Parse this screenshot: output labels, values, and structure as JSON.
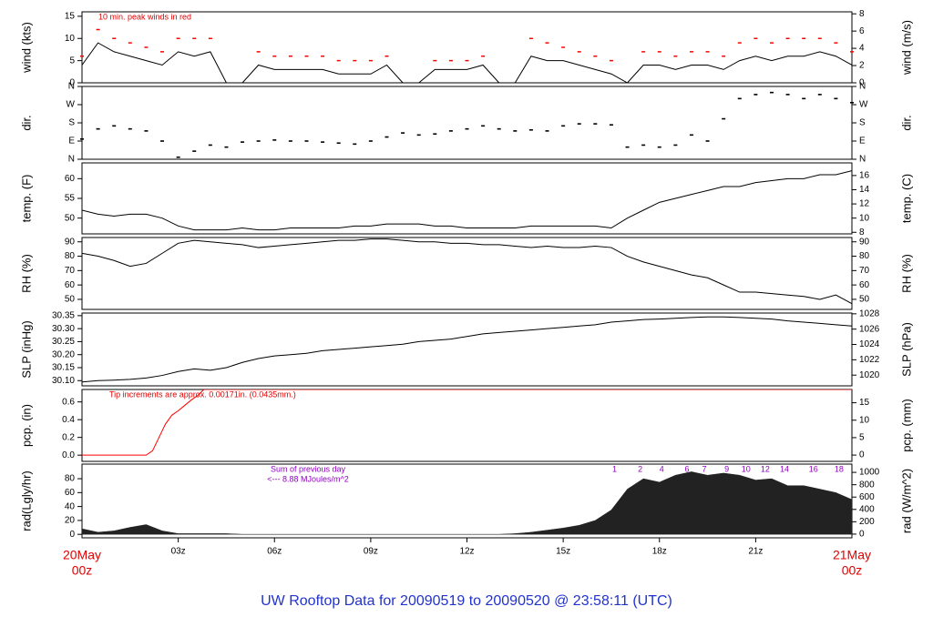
{
  "title": "UW Rooftop Data for 20090519  to  20090520 @ 23:58:11  (UTC)",
  "xlim": [
    0,
    24
  ],
  "xticks": [
    {
      "value": 3,
      "label": "03z"
    },
    {
      "value": 6,
      "label": "06z"
    },
    {
      "value": 9,
      "label": "09z"
    },
    {
      "value": 12,
      "label": "12z"
    },
    {
      "value": 15,
      "label": "15z"
    },
    {
      "value": 18,
      "label": "18z"
    },
    {
      "value": 21,
      "label": "21z"
    }
  ],
  "x_start_label": [
    "20May",
    "00z"
  ],
  "x_end_label": [
    "21May",
    "00z"
  ],
  "chart_data": [
    {
      "type": "line",
      "ylabel": "wind (kts)",
      "y2label": "wind (m/s)",
      "ylim": [
        0,
        16
      ],
      "yticks": [
        0,
        5,
        10,
        15
      ],
      "y2lim": [
        0,
        8.23
      ],
      "y2ticks": [
        0,
        2,
        4,
        6,
        8
      ],
      "annotation": "10 min. peak winds in red",
      "x": [
        0,
        0.5,
        1,
        1.5,
        2,
        2.5,
        3,
        3.5,
        4,
        4.5,
        5,
        5.5,
        6,
        6.5,
        7,
        7.5,
        8,
        8.5,
        9,
        9.5,
        10,
        10.5,
        11,
        11.5,
        12,
        12.5,
        13,
        13.5,
        14,
        14.5,
        15,
        15.5,
        16,
        16.5,
        17,
        17.5,
        18,
        18.5,
        19,
        19.5,
        20,
        20.5,
        21,
        21.5,
        22,
        22.5,
        23,
        23.5,
        24
      ],
      "series": [
        {
          "color": "#000000",
          "values": [
            4,
            9,
            7,
            6,
            5,
            4,
            7,
            6,
            7,
            0,
            0,
            4,
            3,
            3,
            3,
            3,
            2,
            2,
            2,
            4,
            0,
            0,
            3,
            3,
            3,
            4,
            0,
            0,
            6,
            5,
            5,
            4,
            3,
            2,
            0,
            4,
            4,
            3,
            4,
            4,
            3,
            5,
            6,
            5,
            6,
            6,
            7,
            6,
            4
          ]
        },
        {
          "color": "#ff0000",
          "marker": "dash",
          "values": [
            6,
            12,
            10,
            9,
            8,
            7,
            10,
            10,
            10,
            0,
            0,
            7,
            6,
            6,
            6,
            6,
            5,
            5,
            5,
            6,
            0,
            0,
            5,
            5,
            5,
            6,
            0,
            0,
            10,
            9,
            8,
            7,
            6,
            5,
            0,
            7,
            7,
            6,
            7,
            7,
            6,
            9,
            10,
            9,
            10,
            10,
            10,
            9,
            7
          ]
        }
      ]
    },
    {
      "type": "scatter",
      "ylabel": "dir.",
      "y2label": "dir.",
      "ylim": [
        0,
        360
      ],
      "yticks": [
        {
          "value": 0,
          "label": "N"
        },
        {
          "value": 90,
          "label": "E"
        },
        {
          "value": 180,
          "label": "S"
        },
        {
          "value": 270,
          "label": "W"
        },
        {
          "value": 360,
          "label": "N"
        }
      ],
      "y2lim": [
        0,
        360
      ],
      "y2ticks": [
        {
          "value": 0,
          "label": "N"
        },
        {
          "value": 90,
          "label": "E"
        },
        {
          "value": 180,
          "label": "S"
        },
        {
          "value": 270,
          "label": "W"
        },
        {
          "value": 360,
          "label": "N"
        }
      ],
      "x": [
        0,
        0.5,
        1,
        1.5,
        2,
        2.5,
        3,
        3.5,
        4,
        4.5,
        5,
        5.5,
        6,
        6.5,
        7,
        7.5,
        8,
        8.5,
        9,
        9.5,
        10,
        10.5,
        11,
        11.5,
        12,
        12.5,
        13,
        13.5,
        14,
        14.5,
        15,
        15.5,
        16,
        16.5,
        17,
        17.5,
        18,
        18.5,
        19,
        19.5,
        20,
        20.5,
        21,
        21.5,
        22,
        22.5,
        23,
        23.5,
        24
      ],
      "series": [
        {
          "color": "#000000",
          "values": [
            100,
            150,
            165,
            150,
            140,
            90,
            10,
            40,
            70,
            60,
            85,
            90,
            95,
            90,
            90,
            85,
            80,
            75,
            90,
            110,
            130,
            120,
            125,
            140,
            150,
            165,
            150,
            140,
            145,
            140,
            165,
            175,
            175,
            170,
            60,
            70,
            60,
            70,
            120,
            90,
            200,
            300,
            320,
            330,
            320,
            300,
            320,
            300,
            280
          ]
        }
      ]
    },
    {
      "type": "line",
      "ylabel": "temp. (F)",
      "y2label": "temp. (C)",
      "ylim": [
        46,
        64
      ],
      "yticks": [
        50,
        55,
        60
      ],
      "y2lim": [
        7.78,
        17.78
      ],
      "y2ticks": [
        8,
        10,
        12,
        14,
        16
      ],
      "x": [
        0,
        0.5,
        1,
        1.5,
        2,
        2.5,
        3,
        3.5,
        4,
        4.5,
        5,
        5.5,
        6,
        6.5,
        7,
        7.5,
        8,
        8.5,
        9,
        9.5,
        10,
        10.5,
        11,
        11.5,
        12,
        12.5,
        13,
        13.5,
        14,
        14.5,
        15,
        15.5,
        16,
        16.5,
        17,
        17.5,
        18,
        18.5,
        19,
        19.5,
        20,
        20.5,
        21,
        21.5,
        22,
        22.5,
        23,
        23.5,
        24
      ],
      "series": [
        {
          "color": "#000000",
          "values": [
            52,
            51,
            50.5,
            51,
            51,
            50,
            48,
            47,
            47,
            47,
            47.5,
            47,
            47,
            47.5,
            47.5,
            47.5,
            47.5,
            48,
            48,
            48.5,
            48.5,
            48.5,
            48,
            48,
            47.5,
            47.5,
            47.5,
            47.5,
            48,
            48,
            48,
            48,
            48,
            47.5,
            50,
            52,
            54,
            55,
            56,
            57,
            58,
            58,
            59,
            59.5,
            60,
            60,
            61,
            61,
            62
          ]
        }
      ]
    },
    {
      "type": "line",
      "ylabel": "RH (%)",
      "y2label": "RH (%)",
      "ylim": [
        43,
        93
      ],
      "yticks": [
        50,
        60,
        70,
        80,
        90
      ],
      "y2lim": [
        43,
        93
      ],
      "y2ticks": [
        50,
        60,
        70,
        80,
        90
      ],
      "x": [
        0,
        0.5,
        1,
        1.5,
        2,
        2.5,
        3,
        3.5,
        4,
        4.5,
        5,
        5.5,
        6,
        6.5,
        7,
        7.5,
        8,
        8.5,
        9,
        9.5,
        10,
        10.5,
        11,
        11.5,
        12,
        12.5,
        13,
        13.5,
        14,
        14.5,
        15,
        15.5,
        16,
        16.5,
        17,
        17.5,
        18,
        18.5,
        19,
        19.5,
        20,
        20.5,
        21,
        21.5,
        22,
        22.5,
        23,
        23.5,
        24
      ],
      "series": [
        {
          "color": "#000000",
          "values": [
            82,
            80,
            77,
            73,
            75,
            82,
            89,
            91,
            90,
            89,
            88,
            86,
            87,
            88,
            89,
            90,
            91,
            91,
            92,
            92,
            91,
            90,
            90,
            89,
            89,
            88,
            88,
            87,
            86,
            87,
            86,
            86,
            87,
            86,
            80,
            76,
            73,
            70,
            67,
            65,
            60,
            55,
            55,
            54,
            53,
            52,
            50,
            53,
            47
          ]
        }
      ]
    },
    {
      "type": "line",
      "ylabel": "SLP (inHg)",
      "y2label": "SLP (hPa)",
      "ylim": [
        30.08,
        30.36
      ],
      "yticks": [
        {
          "value": 30.1,
          "label": "30.10"
        },
        30.15,
        {
          "value": 30.2,
          "label": "30.20"
        },
        30.25,
        {
          "value": 30.3,
          "label": "30.30"
        },
        30.35
      ],
      "y2lim": [
        1018.6,
        1028.1
      ],
      "y2ticks": [
        1020,
        1022,
        1024,
        1026,
        1028
      ],
      "x": [
        0,
        0.5,
        1,
        1.5,
        2,
        2.5,
        3,
        3.5,
        4,
        4.5,
        5,
        5.5,
        6,
        6.5,
        7,
        7.5,
        8,
        8.5,
        9,
        9.5,
        10,
        10.5,
        11,
        11.5,
        12,
        12.5,
        13,
        13.5,
        14,
        14.5,
        15,
        15.5,
        16,
        16.5,
        17,
        17.5,
        18,
        18.5,
        19,
        19.5,
        20,
        20.5,
        21,
        21.5,
        22,
        22.5,
        23,
        23.5,
        24
      ],
      "series": [
        {
          "color": "#000000",
          "values": [
            30.095,
            30.1,
            30.102,
            30.105,
            30.11,
            30.12,
            30.135,
            30.145,
            30.14,
            30.15,
            30.17,
            30.185,
            30.195,
            30.2,
            30.205,
            30.215,
            30.22,
            30.225,
            30.23,
            30.235,
            30.24,
            30.25,
            30.255,
            30.26,
            30.27,
            30.28,
            30.285,
            30.29,
            30.295,
            30.3,
            30.305,
            30.31,
            30.315,
            30.325,
            30.33,
            30.335,
            30.337,
            30.34,
            30.343,
            30.345,
            30.345,
            30.343,
            30.34,
            30.337,
            30.33,
            30.325,
            30.32,
            30.315,
            30.31
          ]
        }
      ]
    },
    {
      "type": "line",
      "ylabel": "pcp. (in)",
      "y2label": "pcp. (mm)",
      "ylim": [
        -0.07,
        0.74
      ],
      "yticks": [
        {
          "value": 0,
          "label": "0.0"
        },
        0.2,
        0.4,
        0.6
      ],
      "y2lim": [
        -1.8,
        18.8
      ],
      "y2ticks": [
        0,
        5,
        10,
        15
      ],
      "annotation": "Tip increments are approx. 0.00171in. (0.0435mm.)",
      "x": [
        0,
        2,
        2.2,
        2.4,
        2.6,
        2.8,
        3,
        3.2,
        3.4,
        3.6,
        3.8,
        24
      ],
      "series": [
        {
          "color": "#ff0000",
          "values": [
            0,
            0,
            0.05,
            0.2,
            0.35,
            0.45,
            0.5,
            0.56,
            0.62,
            0.67,
            0.74,
            0.74
          ]
        }
      ]
    },
    {
      "type": "area",
      "ylabel": "rad(Lgly/hr)",
      "y2label": "rad (W/m^2)",
      "ylim": [
        -5,
        101
      ],
      "yticks": [
        0,
        20,
        40,
        60,
        80
      ],
      "y2lim": [
        -60,
        1134
      ],
      "y2ticks": [
        0,
        200,
        400,
        600,
        800,
        1000
      ],
      "annotation": [
        "Sum of previous day",
        "<--- 8.88 MJoules/m^2"
      ],
      "hour_labels": {
        "x": [
          16.6,
          17.4,
          18.07,
          18.86,
          19.4,
          20.1,
          20.7,
          21.3,
          21.9,
          22.8,
          23.6
        ],
        "labels": [
          "1",
          "2",
          "4",
          "6",
          "7",
          "9",
          "10",
          "12",
          "14",
          "16",
          "18"
        ]
      },
      "x": [
        0,
        0.5,
        1,
        1.5,
        2,
        2.5,
        3,
        3.5,
        4,
        4.5,
        5,
        5.5,
        6,
        6.5,
        7,
        7.5,
        8,
        8.5,
        9,
        9.5,
        10,
        10.5,
        11,
        11.5,
        12,
        12.5,
        13,
        13.5,
        14,
        14.5,
        15,
        15.5,
        16,
        16.5,
        17,
        17.5,
        18,
        18.5,
        19,
        19.5,
        20,
        20.5,
        21,
        21.5,
        22,
        22.5,
        23,
        23.5,
        24
      ],
      "series": [
        {
          "color": "#222222",
          "values": [
            8,
            3,
            5,
            10,
            14,
            5,
            1,
            1,
            1,
            1,
            0,
            0,
            0,
            0,
            0,
            0,
            0,
            0,
            0,
            0,
            0,
            0,
            0,
            0,
            0,
            0,
            0,
            1,
            3,
            6,
            9,
            13,
            20,
            35,
            65,
            80,
            75,
            85,
            90,
            85,
            88,
            85,
            78,
            80,
            70,
            70,
            65,
            60,
            50
          ]
        }
      ]
    }
  ]
}
